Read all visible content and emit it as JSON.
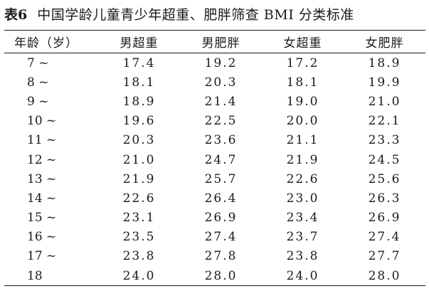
{
  "caption": {
    "label": "表6",
    "title": "中国学龄儿童青少年超重、肥胖筛查 BMI 分类标准"
  },
  "table": {
    "headers": [
      "年龄（岁）",
      "男超重",
      "男肥胖",
      "女超重",
      "女肥胖"
    ],
    "rows": [
      [
        "7 ~",
        "17.4",
        "19.2",
        "17.2",
        "18.9"
      ],
      [
        "8 ~",
        "18.1",
        "20.3",
        "18.1",
        "19.9"
      ],
      [
        "9 ~",
        "18.9",
        "21.4",
        "19.0",
        "21.0"
      ],
      [
        "10 ~",
        "19.6",
        "22.5",
        "20.0",
        "22.1"
      ],
      [
        "11 ~",
        "20.3",
        "23.6",
        "21.1",
        "23.3"
      ],
      [
        "12 ~",
        "21.0",
        "24.7",
        "21.9",
        "24.5"
      ],
      [
        "13 ~",
        "21.9",
        "25.7",
        "22.6",
        "25.6"
      ],
      [
        "14 ~",
        "22.6",
        "26.4",
        "23.0",
        "26.3"
      ],
      [
        "15 ~",
        "23.1",
        "26.9",
        "23.4",
        "26.9"
      ],
      [
        "16 ~",
        "23.5",
        "27.4",
        "23.7",
        "27.4"
      ],
      [
        "17 ~",
        "23.8",
        "27.8",
        "23.8",
        "27.7"
      ],
      [
        "18",
        "24.0",
        "28.0",
        "24.0",
        "28.0"
      ]
    ]
  }
}
